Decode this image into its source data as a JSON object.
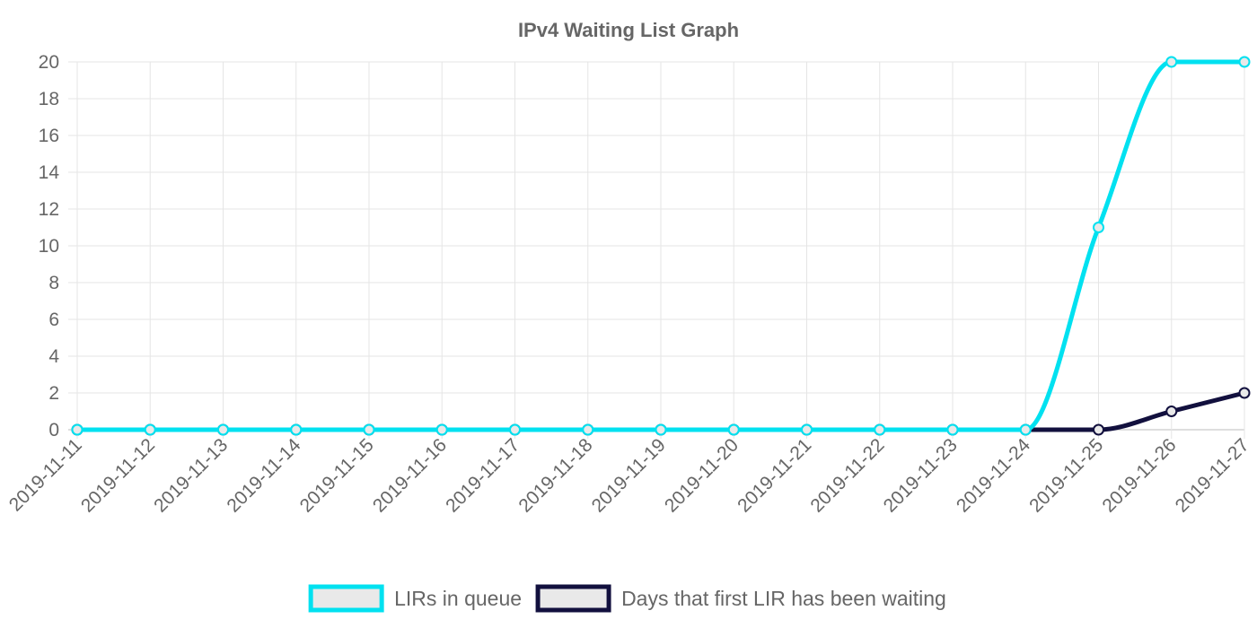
{
  "chart_data": {
    "type": "line",
    "title": "IPv4 Waiting List Graph",
    "xlabel": "",
    "ylabel": "",
    "ylim": [
      0,
      20
    ],
    "y_ticks": [
      0,
      2,
      4,
      6,
      8,
      10,
      12,
      14,
      16,
      18,
      20
    ],
    "grid": true,
    "legend_position": "bottom",
    "categories": [
      "2019-11-11",
      "2019-11-12",
      "2019-11-13",
      "2019-11-14",
      "2019-11-15",
      "2019-11-16",
      "2019-11-17",
      "2019-11-18",
      "2019-11-19",
      "2019-11-20",
      "2019-11-21",
      "2019-11-22",
      "2019-11-23",
      "2019-11-24",
      "2019-11-25",
      "2019-11-26",
      "2019-11-27"
    ],
    "series": [
      {
        "name": "LIRs in queue",
        "color": "#00e1f0",
        "values": [
          0,
          0,
          0,
          0,
          0,
          0,
          0,
          0,
          0,
          0,
          0,
          0,
          0,
          0,
          11,
          20,
          20
        ]
      },
      {
        "name": "Days that first LIR has been waiting",
        "color": "#12103e",
        "values": [
          0,
          0,
          0,
          0,
          0,
          0,
          0,
          0,
          0,
          0,
          0,
          0,
          0,
          0,
          0,
          1,
          2
        ]
      }
    ]
  }
}
